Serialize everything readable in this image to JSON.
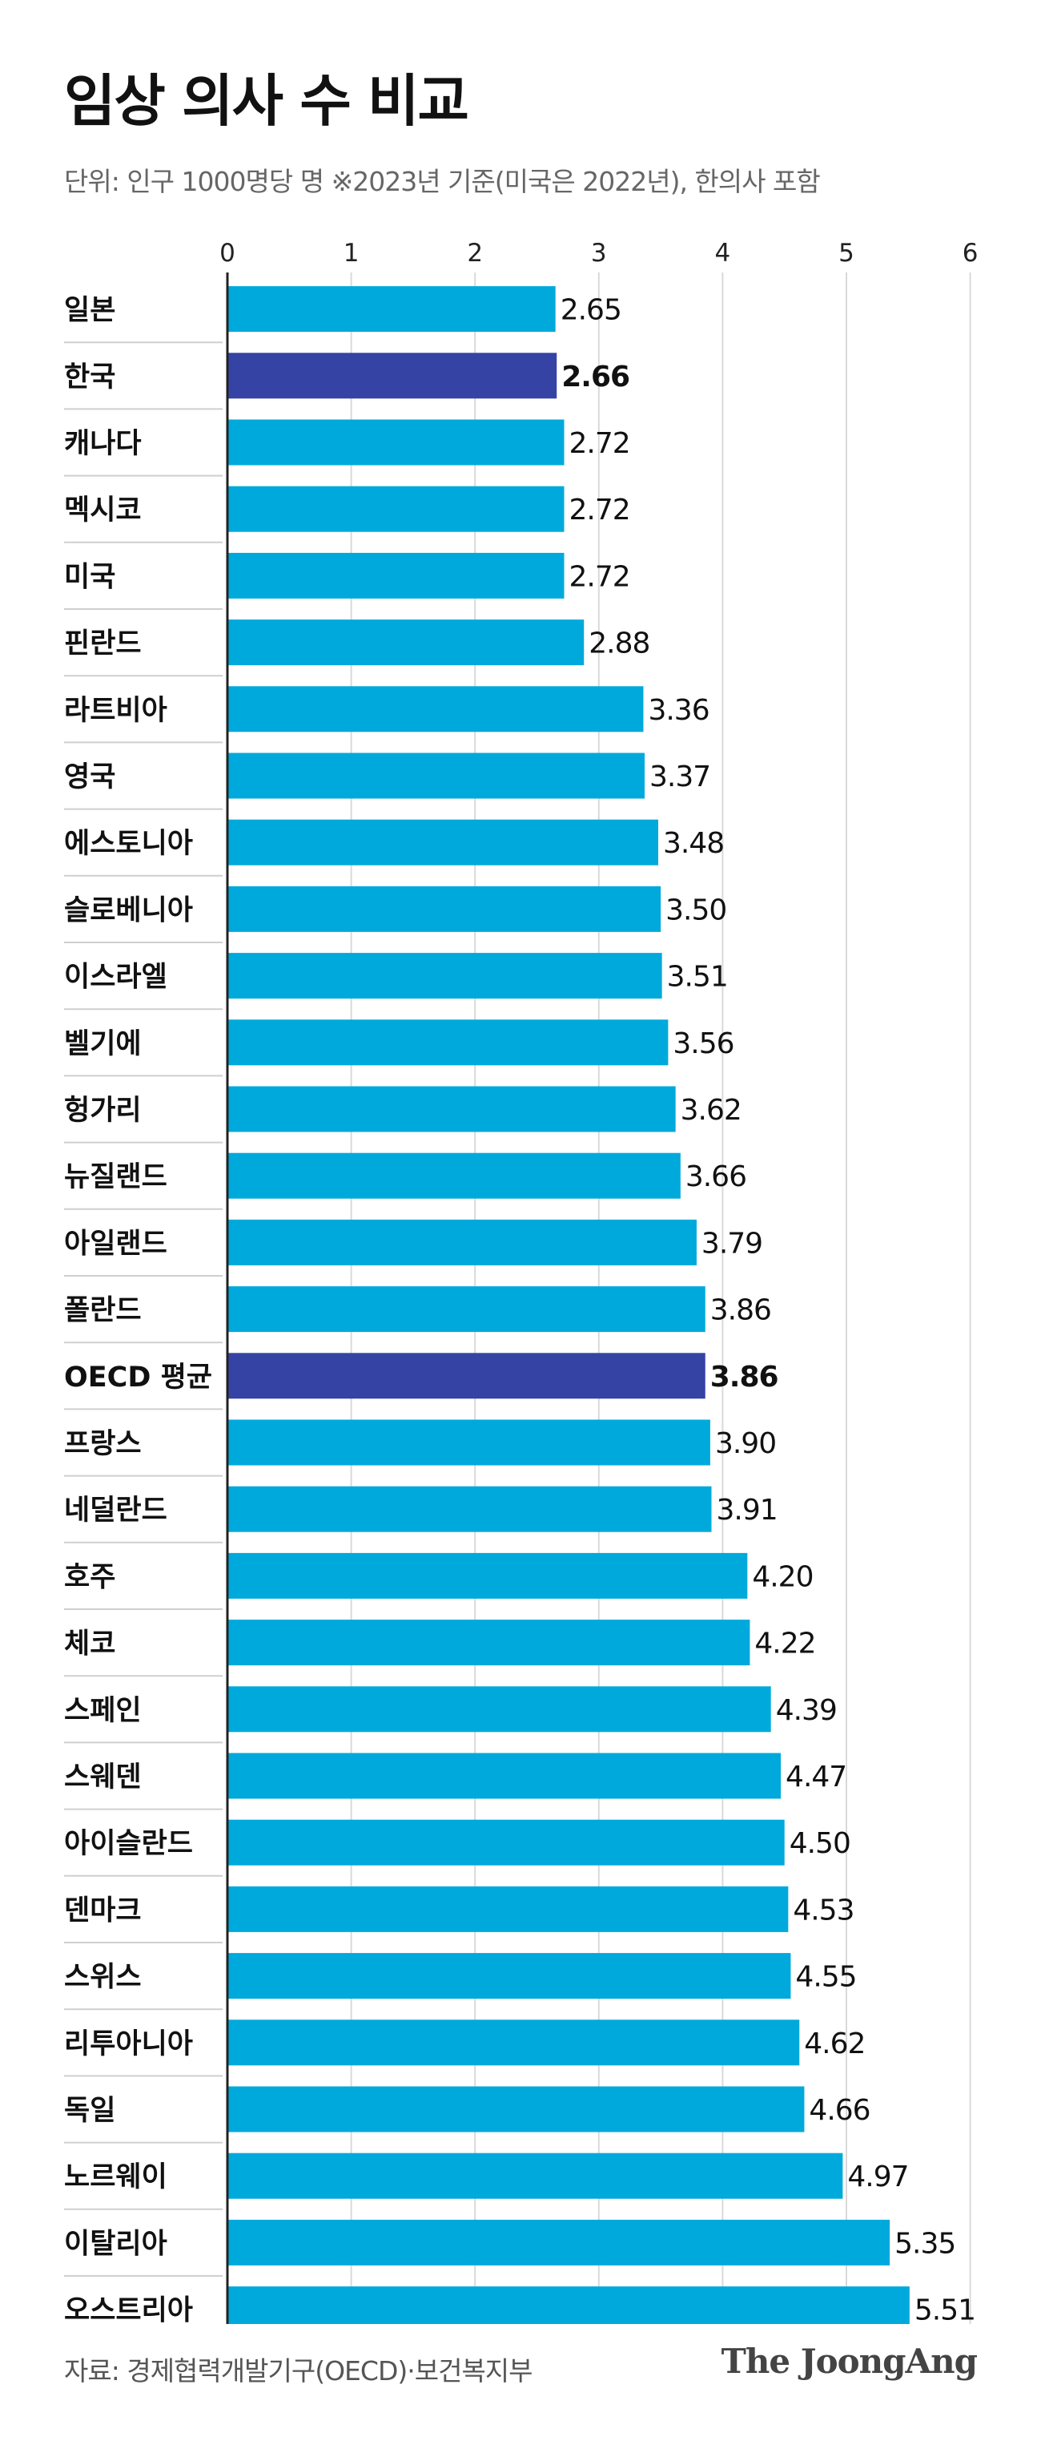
{
  "chart_data": {
    "type": "bar",
    "orientation": "horizontal",
    "title": "임상 의사 수 비교",
    "subtitle": "단위: 인구 1000명당 명   ※2023년 기준(미국은 2022년), 한의사 포함",
    "categories": [
      "일본",
      "한국",
      "캐나다",
      "멕시코",
      "미국",
      "핀란드",
      "라트비아",
      "영국",
      "에스토니아",
      "슬로베니아",
      "이스라엘",
      "벨기에",
      "헝가리",
      "뉴질랜드",
      "아일랜드",
      "폴란드",
      "OECD 평균",
      "프랑스",
      "네덜란드",
      "호주",
      "체코",
      "스페인",
      "스웨덴",
      "아이슬란드",
      "덴마크",
      "스위스",
      "리투아니아",
      "독일",
      "노르웨이",
      "이탈리아",
      "오스트리아"
    ],
    "values": [
      2.65,
      2.66,
      2.72,
      2.72,
      2.72,
      2.88,
      3.36,
      3.37,
      3.48,
      3.5,
      3.51,
      3.56,
      3.62,
      3.66,
      3.79,
      3.86,
      3.86,
      3.9,
      3.91,
      4.2,
      4.22,
      4.39,
      4.47,
      4.5,
      4.53,
      4.55,
      4.62,
      4.66,
      4.97,
      5.35,
      5.51
    ],
    "value_labels": [
      "2.65",
      "2.66",
      "2.72",
      "2.72",
      "2.72",
      "2.88",
      "3.36",
      "3.37",
      "3.48",
      "3.50",
      "3.51",
      "3.56",
      "3.62",
      "3.66",
      "3.79",
      "3.86",
      "3.86",
      "3.90",
      "3.91",
      "4.20",
      "4.22",
      "4.39",
      "4.47",
      "4.50",
      "4.53",
      "4.55",
      "4.62",
      "4.66",
      "4.97",
      "5.35",
      "5.51"
    ],
    "highlighted": [
      "한국",
      "OECD 평균"
    ],
    "xlim": [
      0,
      6
    ],
    "xticks": [
      "0",
      "1",
      "2",
      "3",
      "4",
      "5",
      "6"
    ],
    "grid": true,
    "xlabel": "",
    "ylabel": ""
  },
  "colors": {
    "bar": "#00a9dc",
    "highlight": "#3543a5",
    "grid": "#d9d9d9",
    "axis": "#222222",
    "separator": "#cfcfcf"
  },
  "footer": {
    "source": "자료: 경제협력개발기구(OECD)·보건복지부",
    "logo": "The JoongAng"
  }
}
